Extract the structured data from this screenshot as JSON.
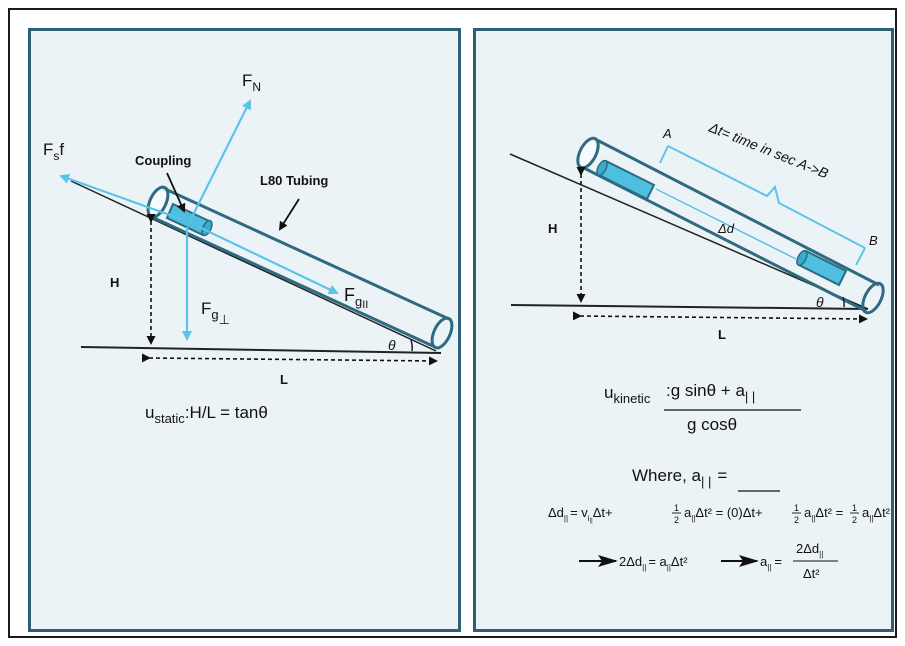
{
  "left": {
    "labels": {
      "normal_force": "F",
      "normal_force_sub": "N",
      "friction_force": "F",
      "friction_force_sub": "s",
      "friction_force_suffix": "f",
      "coupling": "Coupling",
      "tubing": "L80 Tubing",
      "gravity_parallel": "F",
      "gravity_parallel_sub": "g",
      "gravity_parallel_subsub": "II",
      "gravity_perp": "F",
      "gravity_perp_sub": "g",
      "gravity_perp_subsub": "⊥",
      "height": "H",
      "length": "L",
      "angle": "θ"
    },
    "formula": {
      "symbol": "u",
      "sub": "static",
      "expr": ":H/L = tanθ"
    }
  },
  "right": {
    "labels": {
      "point_a": "A",
      "point_b": "B",
      "time_note": "Δt= time in sec A->B",
      "displacement": "Δd",
      "height": "H",
      "length": "L",
      "angle": "θ"
    },
    "formula": {
      "symbol": "u",
      "sub": "kinetic",
      "numerator": ":g sinθ + a",
      "numerator_sub": "| |",
      "denominator": "g cosθ"
    },
    "where": {
      "text": "Where, a",
      "sub": "| |",
      "equals": "="
    },
    "eq1": {
      "t1": "Δd",
      "t2": "= v",
      "t3": "i",
      "t4": "Δt+",
      "t5": "a",
      "t6": "Δt² = (0)Δt+",
      "t7": "a",
      "t8": "Δt² =",
      "t9": "a",
      "t10": "Δt²",
      "par": "||",
      "half_num": "1",
      "half_den": "2"
    },
    "eq2": {
      "t1": "2Δd",
      "t2": "= a",
      "t3": "Δt²",
      "t4": "a",
      "t5": "=",
      "num": "2Δd",
      "den": "Δt²",
      "par": "||"
    }
  },
  "colors": {
    "panel_border": "#2f5f76",
    "panel_fill": "#ecf3f7",
    "tube_stroke": "#2e6b80",
    "cyan": "#5bc4e8",
    "coupling_fill": "#4ebfe0"
  }
}
